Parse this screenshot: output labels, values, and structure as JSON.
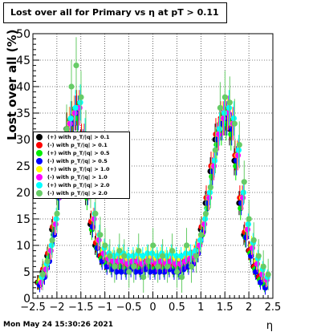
{
  "title": "Lost over all for Primary vs   η at pT > 0.11",
  "footer_timestamp": "Mon May 24 15:30:26 2021",
  "chart_data": {
    "type": "scatter",
    "xlabel": "η",
    "ylabel": "Lost over all (%)",
    "xlim": [
      -2.5,
      2.5
    ],
    "ylim": [
      0,
      50
    ],
    "x_tick_labels": [
      "−2.5",
      "−2",
      "−1.5",
      "−1",
      "−0.5",
      "0",
      "0.5",
      "1",
      "1.5",
      "2",
      "2.5"
    ],
    "y_tick_labels": [
      "0",
      "5",
      "10",
      "15",
      "20",
      "25",
      "30",
      "35",
      "40",
      "45",
      "50"
    ],
    "grid": true,
    "legend_position": "left",
    "x": [
      -2.35,
      -2.25,
      -2.15,
      -2.05,
      -1.95,
      -1.85,
      -1.75,
      -1.65,
      -1.55,
      -1.45,
      -1.35,
      -1.25,
      -1.15,
      -1.05,
      -0.95,
      -0.85,
      -0.75,
      -0.65,
      -0.55,
      -0.45,
      -0.35,
      -0.25,
      -0.15,
      -0.05,
      0.05,
      0.15,
      0.25,
      0.35,
      0.45,
      0.55,
      0.65,
      0.75,
      0.85,
      0.95,
      1.05,
      1.15,
      1.25,
      1.35,
      1.45,
      1.55,
      1.65,
      1.75,
      1.85,
      1.95,
      2.05,
      2.15,
      2.25,
      2.35
    ],
    "series": [
      {
        "name": "(+) with p_T/|q| > 0.1",
        "color": "#000000",
        "values": [
          3,
          5,
          8,
          13,
          20,
          27,
          32,
          34,
          35,
          29,
          20,
          14,
          10,
          8,
          7,
          6.5,
          7,
          7,
          6.5,
          6.5,
          7,
          6.5,
          7,
          7,
          6.5,
          7,
          6.5,
          7,
          6.5,
          6.5,
          7,
          7,
          7.5,
          9,
          13,
          18,
          24,
          30,
          33,
          34,
          32,
          26,
          18,
          12,
          9,
          6,
          4,
          3
        ]
      },
      {
        "name": "(-) with p_T/|q| > 0.1",
        "color": "#ff0000",
        "values": [
          3,
          5.5,
          8.5,
          13.5,
          21,
          28,
          32,
          34,
          36,
          30,
          21,
          14.5,
          10.5,
          8,
          7,
          6.5,
          6.5,
          6.5,
          6,
          6.5,
          6.5,
          6,
          6.5,
          6.5,
          6,
          6.5,
          6,
          6.5,
          6,
          6,
          6.5,
          7,
          7.5,
          9.5,
          13.5,
          19,
          25,
          31,
          34,
          35,
          33,
          27,
          19,
          12.5,
          9,
          6,
          4,
          3
        ]
      },
      {
        "name": "(+) with p_T/|q| > 0.5",
        "color": "#00ee00",
        "values": [
          3,
          4.5,
          7.5,
          12,
          19,
          26,
          31,
          33,
          34,
          28,
          19,
          13,
          9.5,
          7.5,
          6.5,
          6,
          6,
          6,
          5.5,
          6,
          6,
          5.5,
          6,
          6,
          5.5,
          6,
          5.5,
          6,
          5.5,
          5.5,
          6,
          6.5,
          7,
          8.5,
          12,
          17,
          23,
          29,
          32,
          33,
          31,
          25,
          17,
          11.5,
          8.5,
          5.5,
          3.5,
          2.5
        ]
      },
      {
        "name": "(-) with p_T/|q| > 0.5",
        "color": "#0000ff",
        "values": [
          2.5,
          4,
          7,
          12,
          19,
          26,
          31,
          33,
          35,
          29,
          20,
          13.5,
          9.5,
          7,
          6,
          5.5,
          5,
          5,
          5,
          5.5,
          5,
          5,
          5.5,
          5,
          5,
          5,
          5,
          5.5,
          5,
          5,
          5.5,
          6,
          6.5,
          8.5,
          12.5,
          18,
          24,
          30,
          33,
          34,
          32,
          26,
          18,
          11.5,
          8,
          5,
          3,
          2
        ]
      },
      {
        "name": "(+) with p_T/|q| > 1.0",
        "color": "#ffff00",
        "values": [
          3.5,
          6,
          9,
          14,
          21,
          28,
          33,
          35,
          36,
          30,
          21,
          15,
          11,
          9,
          8,
          7.5,
          8,
          8,
          7.5,
          7.5,
          8,
          7.5,
          8,
          8,
          7.5,
          8,
          7.5,
          8,
          7.5,
          7.5,
          8,
          8,
          8.5,
          10,
          14,
          19,
          25,
          31,
          34,
          35,
          33,
          27,
          19,
          13,
          10,
          7,
          5,
          3.5
        ]
      },
      {
        "name": "(-) with p_T/|q| > 1.0",
        "color": "#ff00ff",
        "values": [
          3,
          5.5,
          9,
          14,
          21,
          28,
          33,
          35,
          36,
          30,
          21,
          15,
          11,
          8.5,
          7.5,
          7,
          7,
          7,
          6.5,
          7,
          7,
          6.5,
          7,
          7,
          6.5,
          7,
          6.5,
          7,
          6.5,
          6.5,
          7,
          7.5,
          8,
          10,
          14,
          19,
          25,
          31,
          34,
          35,
          33,
          27,
          19,
          13,
          9.5,
          6.5,
          4.5,
          3.5
        ]
      },
      {
        "name": "(+) with p_T/|q| > 2.0",
        "color": "#00ffff",
        "values": [
          4,
          6.5,
          10,
          15,
          22,
          29,
          34,
          36,
          37,
          31,
          22,
          16,
          12,
          9.5,
          8.5,
          8,
          8.5,
          8.5,
          8,
          8,
          8.5,
          8,
          8.5,
          8.5,
          8,
          8.5,
          8,
          8.5,
          8,
          8,
          8.5,
          8.5,
          9,
          11,
          15,
          20,
          26,
          32,
          35,
          36,
          34,
          28,
          20,
          14,
          10.5,
          7.5,
          5.5,
          4
        ]
      },
      {
        "name": "(-) with p_T/|q| > 2.0",
        "color": "#66cc66",
        "values": [
          4.5,
          7,
          11,
          16,
          24,
          32,
          40,
          44,
          38,
          31,
          21,
          16,
          12,
          10,
          8,
          6,
          9,
          8,
          5,
          6,
          9,
          4,
          7,
          10,
          6,
          8,
          6,
          9,
          5,
          4,
          10,
          6,
          8,
          12,
          16,
          21,
          28,
          36,
          38,
          37,
          33,
          29,
          22,
          15,
          11,
          8,
          6,
          4.5
        ]
      }
    ]
  }
}
